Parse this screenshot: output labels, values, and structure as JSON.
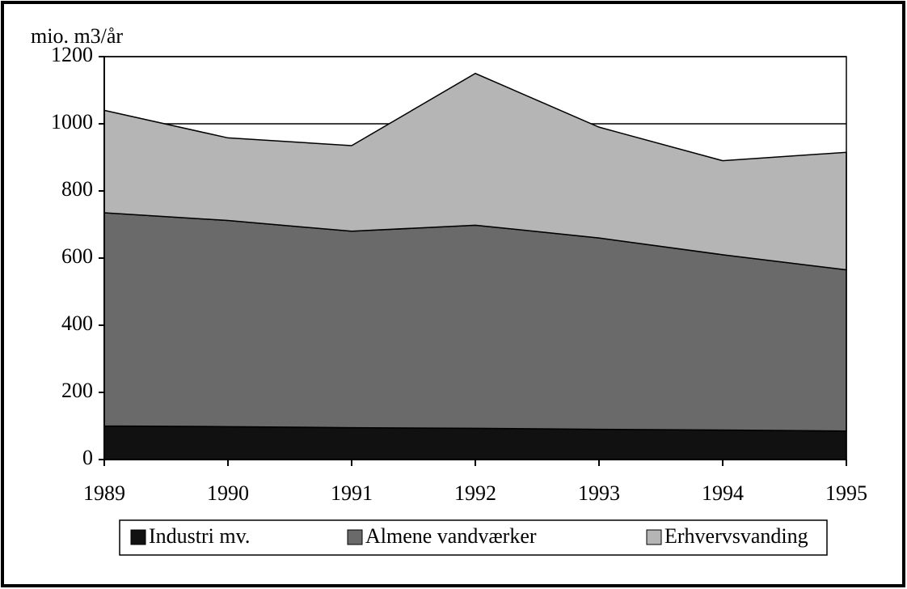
{
  "chart_data": {
    "type": "stacked_area",
    "y_label": "mio. m3/år",
    "categories": [
      "1989",
      "1990",
      "1991",
      "1992",
      "1993",
      "1994",
      "1995"
    ],
    "series": [
      {
        "name": "Industri mv.",
        "color": "#111111",
        "values": [
          100,
          98,
          95,
          93,
          90,
          88,
          85
        ]
      },
      {
        "name": "Almene vandværker",
        "color": "#6a6a6a",
        "values": [
          635,
          614,
          585,
          605,
          570,
          522,
          480
        ]
      },
      {
        "name": "Erhvervsvanding",
        "color": "#b5b5b5",
        "values": [
          305,
          246,
          255,
          452,
          330,
          280,
          350
        ]
      }
    ],
    "ylim": [
      0,
      1200
    ],
    "yticks": [
      0,
      200,
      400,
      600,
      800,
      1000,
      1200
    ],
    "grid": true,
    "legend": "bottom"
  }
}
